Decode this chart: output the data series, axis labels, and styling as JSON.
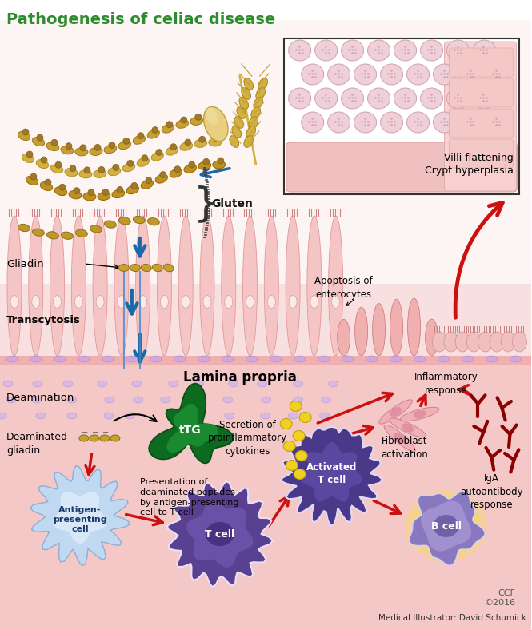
{
  "title": "Pathogenesis of celiac disease",
  "title_color": "#2e8b2e",
  "title_fontsize": 14,
  "bg_color": "#ffffff",
  "credit_ccf": "CCF\n©2016",
  "credit_illustrator": "Medical Illustrator: David Schumick",
  "labels": {
    "gluten": "Gluten",
    "gliadin": "Gliadin",
    "transcytosis": "Transcytosis",
    "deamination": "Deamination",
    "deaminated_gliadin": "Deaminated\ngliadin",
    "ttg": "tTG",
    "presentation": "Presentation of\ndeaminated peptides\nby antigen-presenting\ncell to T cell",
    "lamina_propria": "Lamina propria",
    "secretion": "Secretion of\nproinflammatory\ncytokines",
    "fibroblast": "Fibroblast\nactivation",
    "inflammatory": "Inflammatory\nresponse",
    "iga": "IgA\nautoantibody\nresponse",
    "apoptosis": "Apoptosis of\nenterocytes",
    "villi": "Villi flattening\nCrypt hyperplasia",
    "antigen_cell": "Antigen-\npresenting\ncell",
    "t_cell": "T cell",
    "activated_t": "Activated\nT cell",
    "b_cell": "B cell"
  }
}
